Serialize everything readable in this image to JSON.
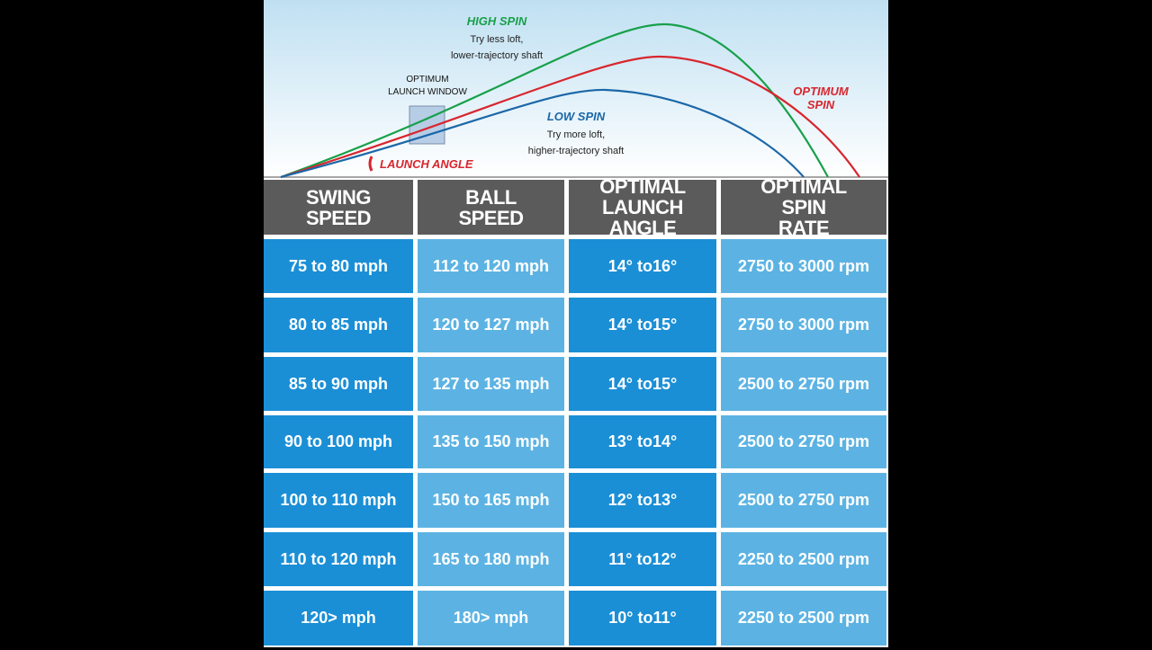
{
  "diagram": {
    "high_spin": {
      "label": "HIGH SPIN",
      "tip": [
        "Try less loft,",
        "lower-trajectory shaft"
      ]
    },
    "window": [
      "OPTIMUM",
      "LAUNCH WINDOW"
    ],
    "low_spin": {
      "label": "LOW SPIN",
      "tip": [
        "Try more loft,",
        "higher-trajectory shaft"
      ]
    },
    "optimum_spin": [
      "OPTIMUM",
      "SPIN"
    ],
    "launch_angle": "LAUNCH ANGLE"
  },
  "table": {
    "header": [
      "SWING SPEED",
      "BALL SPEED",
      "OPTIMAL LAUNCH ANGLE",
      "OPTIMAL SPIN RATE"
    ],
    "rows": [
      [
        "75 to 80 mph",
        "112 to 120 mph",
        "14° to16°",
        "2750 to 3000 rpm"
      ],
      [
        "80 to 85 mph",
        "120 to 127 mph",
        "14° to15°",
        "2750 to 3000 rpm"
      ],
      [
        "85 to 90 mph",
        "127 to 135 mph",
        "14° to15°",
        "2500 to 2750 rpm"
      ],
      [
        "90 to 100 mph",
        "135 to 150 mph",
        "13° to14°",
        "2500 to 2750 rpm"
      ],
      [
        "100 to 110 mph",
        "150 to 165 mph",
        "12° to13°",
        "2500 to 2750 rpm"
      ],
      [
        "110 to 120 mph",
        "165 to 180 mph",
        "11° to12°",
        "2250 to 2500 rpm"
      ],
      [
        "120> mph",
        "180> mph",
        "10° to11°",
        "2250 to 2500 rpm"
      ]
    ]
  }
}
